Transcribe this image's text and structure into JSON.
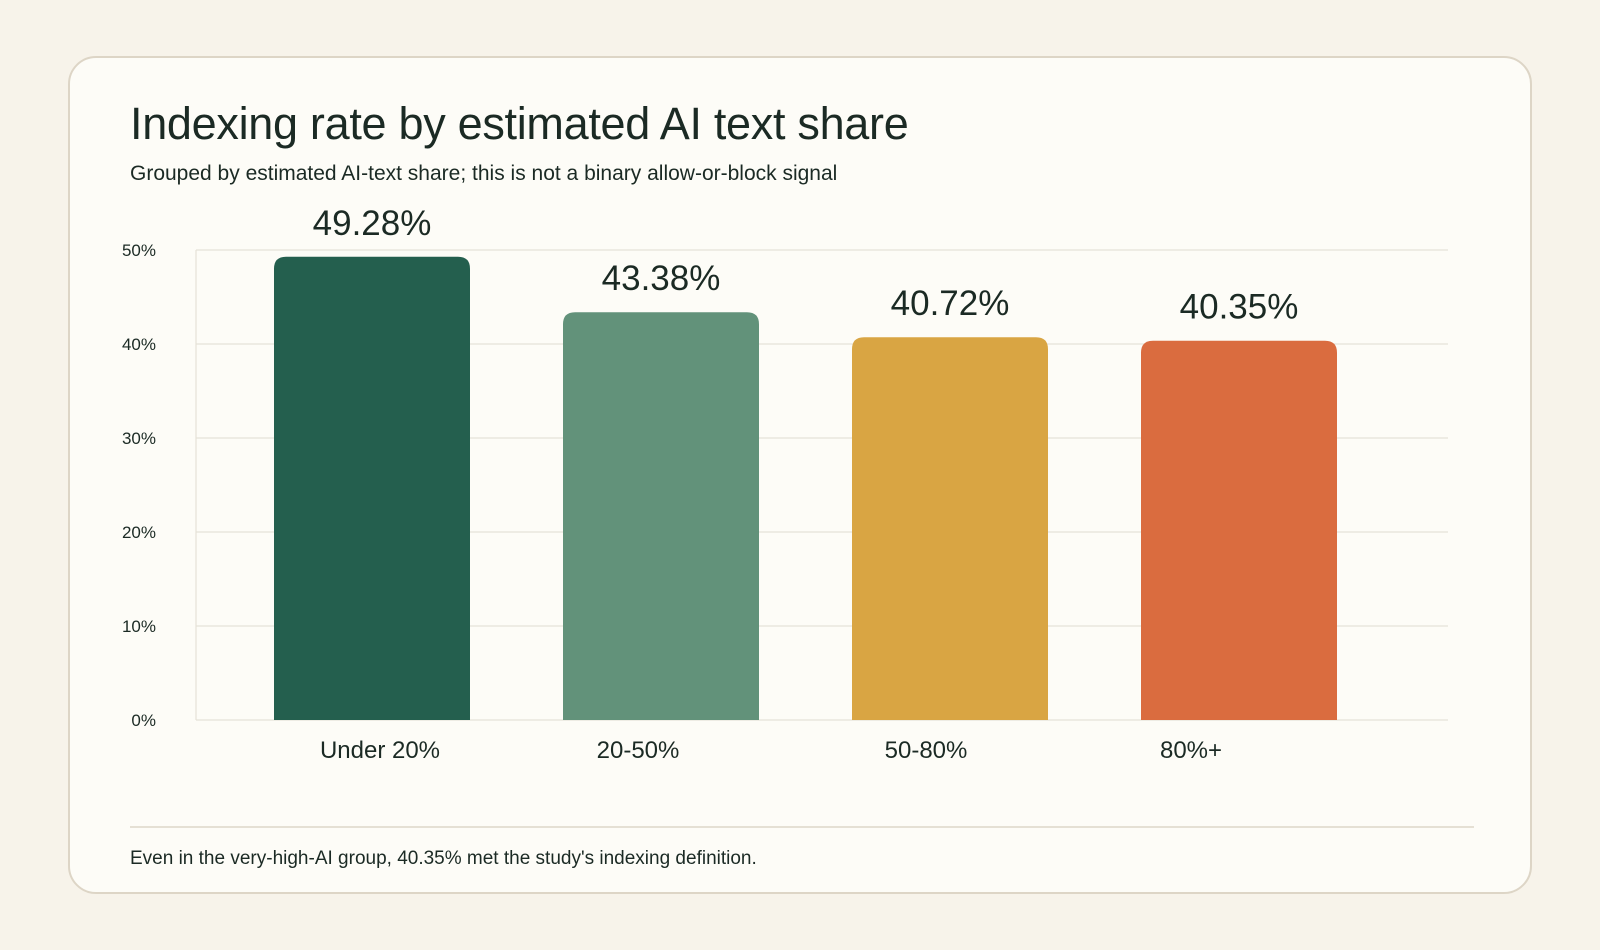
{
  "card": {
    "title": "Indexing rate by estimated AI text share",
    "subtitle": "Grouped by estimated AI-text share; this is not a binary allow-or-block signal",
    "footnote": "Even in the very-high-AI group, 40.35% met the study's indexing definition."
  },
  "chart_data": {
    "type": "bar",
    "title": "Indexing rate by estimated AI text share",
    "subtitle": "Grouped by estimated AI-text share; this is not a binary allow-or-block signal",
    "categories": [
      "Under 20%",
      "20-50%",
      "50-80%",
      "80%+"
    ],
    "values": [
      49.28,
      43.38,
      40.72,
      40.35
    ],
    "value_labels": [
      "49.28%",
      "43.38%",
      "40.72%",
      "40.35%"
    ],
    "colors": [
      "#245f4e",
      "#62927a",
      "#d9a543",
      "#da6c3f"
    ],
    "ylim": [
      0,
      50
    ],
    "yticks": [
      0,
      10,
      20,
      30,
      40,
      50
    ],
    "ytick_labels": [
      "0%",
      "10%",
      "20%",
      "30%",
      "40%",
      "50%"
    ],
    "grid": true,
    "legend": "none"
  }
}
